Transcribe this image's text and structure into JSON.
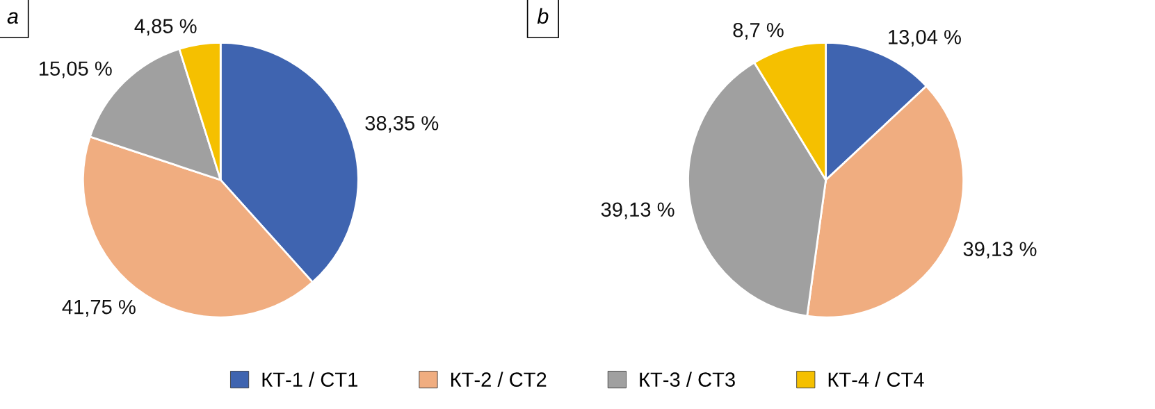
{
  "chart_data": [
    {
      "type": "pie",
      "title": "a",
      "categories": [
        "КТ-1 / CT1",
        "КТ-2 / CT2",
        "КТ-3 / CT3",
        "КТ-4 / CT4"
      ],
      "values": [
        38.35,
        41.75,
        15.05,
        4.85
      ],
      "colors": [
        "#3f64b0",
        "#f0ad80",
        "#a0a0a0",
        "#f5c000"
      ],
      "value_labels": [
        "38,35 %",
        "41,75 %",
        "15,05 %",
        "4,85 %"
      ],
      "legend": "bottom"
    },
    {
      "type": "pie",
      "title": "b",
      "categories": [
        null,
        null,
        null,
        null
      ],
      "values": [
        13.04,
        39.13,
        39.13,
        8.7
      ],
      "colors": [
        "#3f64b0",
        "#f0ad80",
        "#a0a0a0",
        "#f5c000"
      ],
      "value_labels": [
        "13,04 %",
        "39,13 %",
        "39,13 %",
        "8,7 %"
      ]
    }
  ]
}
